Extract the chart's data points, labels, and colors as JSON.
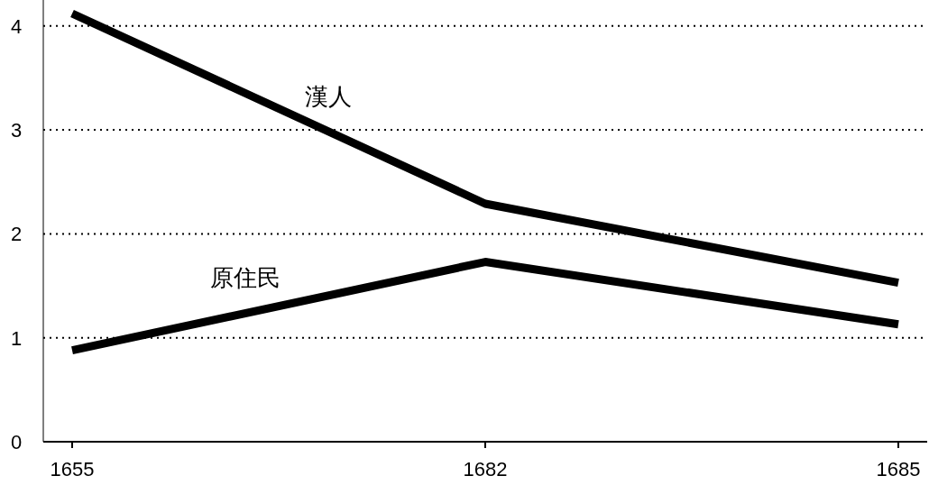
{
  "chart_data": {
    "type": "line",
    "categories": [
      "1655",
      "1682",
      "1685"
    ],
    "series": [
      {
        "name": "漢人",
        "color": "#000000",
        "values": [
          4.12,
          2.29,
          1.53
        ]
      },
      {
        "name": "原住民",
        "color": "#000000",
        "values": [
          0.88,
          1.73,
          1.13
        ]
      }
    ],
    "ylim": [
      0,
      4.25
    ],
    "yticks": [
      0,
      1,
      2,
      3,
      4
    ],
    "grid": "y"
  }
}
